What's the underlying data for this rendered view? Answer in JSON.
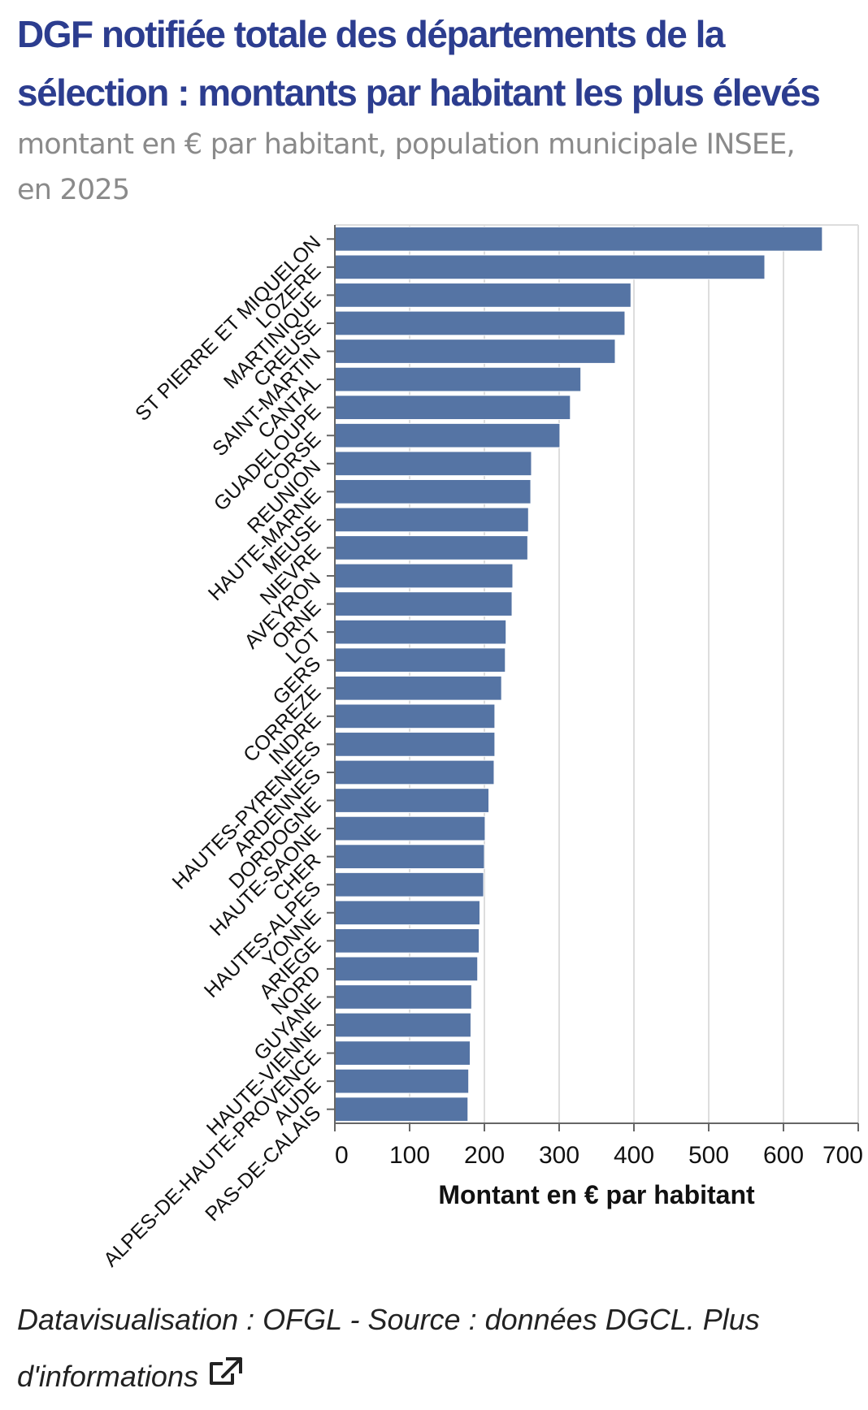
{
  "header": {
    "title": "DGF notifiée totale des départements de la sélection : montants par habitant les plus élevés",
    "subtitle": "montant en € par habitant, population municipale INSEE, en 2025"
  },
  "footer": {
    "text": "Datavisualisation : OFGL - Source : données DGCL. Plus d'informations",
    "icon": "external-link-icon"
  },
  "colors": {
    "bar": "#5574a4",
    "title": "#2c3d8f",
    "grid": "#dddddd",
    "axis": "#666666"
  },
  "chart_data": {
    "type": "bar",
    "orientation": "horizontal",
    "xlabel": "Montant en € par habitant",
    "ylabel": "",
    "xlim": [
      0,
      700
    ],
    "xticks": [
      0,
      100,
      200,
      300,
      400,
      500,
      600,
      700
    ],
    "grid": true,
    "categories": [
      "ST PIERRE ET MIQUELON",
      "LOZERE",
      "MARTINIQUE",
      "CREUSE",
      "SAINT-MARTIN",
      "CANTAL",
      "GUADELOUPE",
      "CORSE",
      "REUNION",
      "HAUTE-MARNE",
      "MEUSE",
      "NIEVRE",
      "AVEYRON",
      "ORNE",
      "LOT",
      "GERS",
      "CORREZE",
      "INDRE",
      "HAUTES-PYRENEES",
      "ARDENNES",
      "DORDOGNE",
      "HAUTE-SAONE",
      "CHER",
      "HAUTES-ALPES",
      "YONNE",
      "ARIEGE",
      "NORD",
      "GUYANE",
      "HAUTE-VIENNE",
      "ALPES-DE-HAUTE-PROVENCE",
      "AUDE",
      "PAS-DE-CALAIS"
    ],
    "values": [
      652,
      575,
      396,
      388,
      375,
      329,
      315,
      301,
      263,
      262,
      259,
      258,
      238,
      237,
      229,
      228,
      223,
      214,
      214,
      213,
      206,
      201,
      200,
      199,
      194,
      193,
      191,
      183,
      182,
      181,
      179,
      178
    ]
  }
}
